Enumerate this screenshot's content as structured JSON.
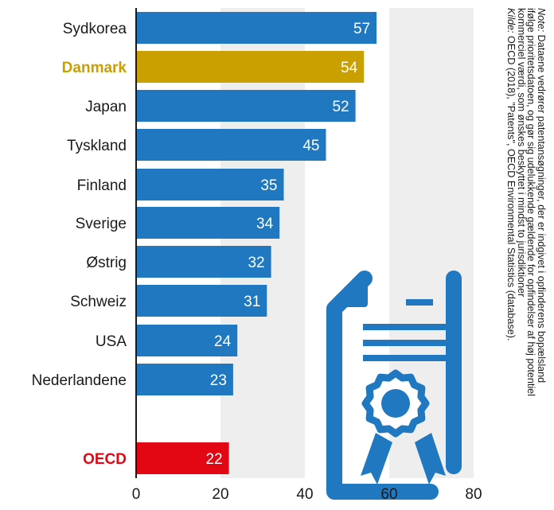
{
  "chart_data": {
    "type": "bar",
    "orientation": "horizontal",
    "categories": [
      "Sydkorea",
      "Danmark",
      "Japan",
      "Tyskland",
      "Finland",
      "Sverige",
      "Østrig",
      "Schweiz",
      "USA",
      "Nederlandene",
      "OECD"
    ],
    "values": [
      57,
      54,
      52,
      45,
      35,
      34,
      32,
      31,
      24,
      23,
      22
    ],
    "bar_colors": [
      "#1f78c0",
      "#c9a000",
      "#1f78c0",
      "#1f78c0",
      "#1f78c0",
      "#1f78c0",
      "#1f78c0",
      "#1f78c0",
      "#1f78c0",
      "#1f78c0",
      "#e30613"
    ],
    "highlighted_labels": {
      "Danmark": "#c9a000",
      "OECD": "#e30613"
    },
    "gap_before": "OECD",
    "xlim": [
      0,
      80
    ],
    "xticks": [
      0,
      20,
      40,
      60,
      80
    ],
    "alternating_shaded_bands": true,
    "band_color": "#eeeeee",
    "value_label_color": "#ffffff",
    "title": "",
    "xlabel": "",
    "ylabel": ""
  },
  "note": {
    "line1": "Dataene vedrører patentansøgninger, der er indgivet i opfinderens bopælsland",
    "line2": "ifølge prioritetsdatoen, og gør sig udelukkende gældende for opfindelser af høj potentiel",
    "line3": "kommerciel værdi, som ønskes beskyttet i mindst to jurisdiktioner",
    "note_prefix": "Note:",
    "source_prefix": "Kilde:",
    "source": "OECD (2018), \"Patents\", OECD Environmental Statistics (database)."
  },
  "icons": {
    "certificate": "certificate-icon"
  },
  "colors": {
    "primary_bar": "#1f78c0",
    "highlight_denmark": "#c9a000",
    "highlight_oecd": "#e30613"
  }
}
